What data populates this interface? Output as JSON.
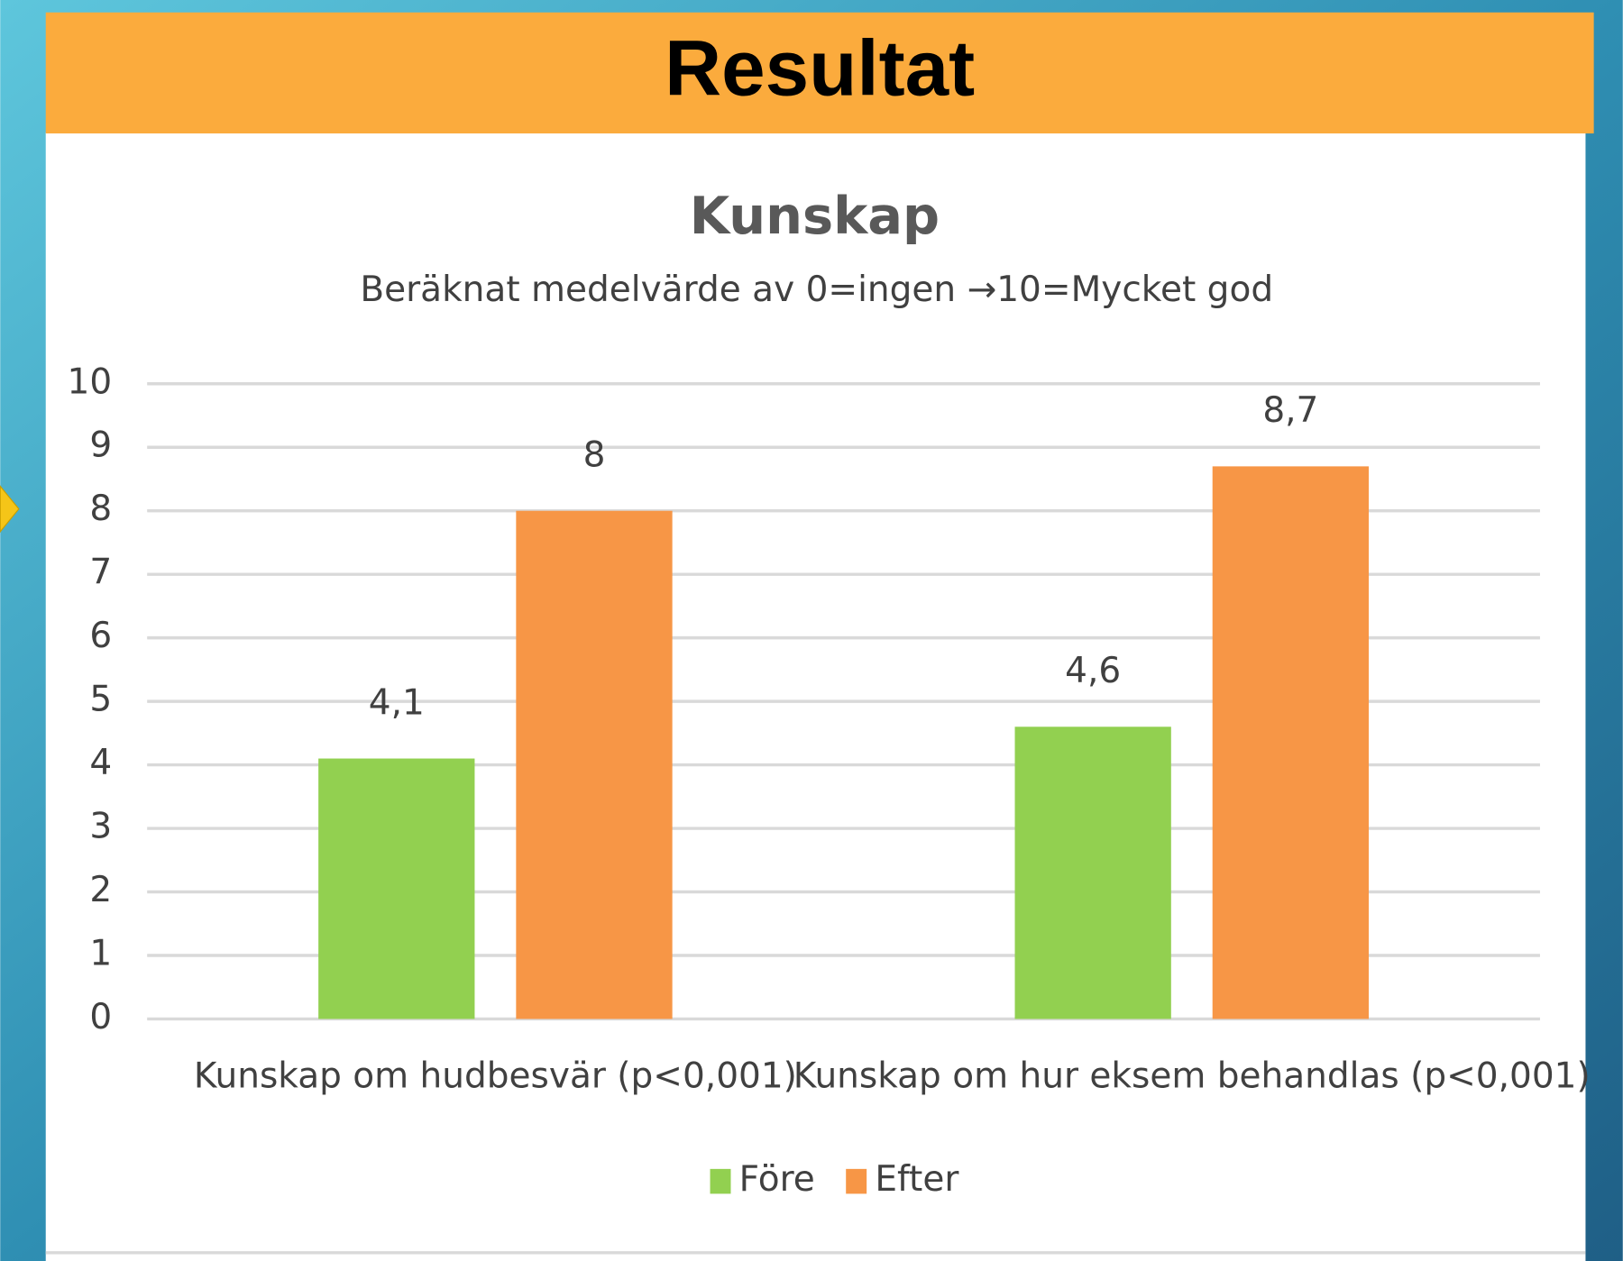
{
  "header": {
    "title": "Resultat"
  },
  "chart_data": {
    "type": "bar",
    "title": "Kunskap",
    "subtitle": "Beräknat medelvärde av 0=ingen →10=Mycket god",
    "categories": [
      "Kunskap om hudbesvär (p<0,001)",
      "Kunskap om hur eksem behandlas (p<0,001)"
    ],
    "series": [
      {
        "name": "Före",
        "color": "#92d050",
        "values": [
          4.1,
          4.6
        ],
        "value_labels": [
          "4,1",
          "4,6"
        ]
      },
      {
        "name": "Efter",
        "color": "#f79646",
        "values": [
          8,
          8.7
        ],
        "value_labels": [
          "8",
          "8,7"
        ]
      }
    ],
    "ylim": [
      0,
      10
    ],
    "yticks": [
      0,
      1,
      2,
      3,
      4,
      5,
      6,
      7,
      8,
      9,
      10
    ],
    "grid": true,
    "legend": "bottom"
  }
}
